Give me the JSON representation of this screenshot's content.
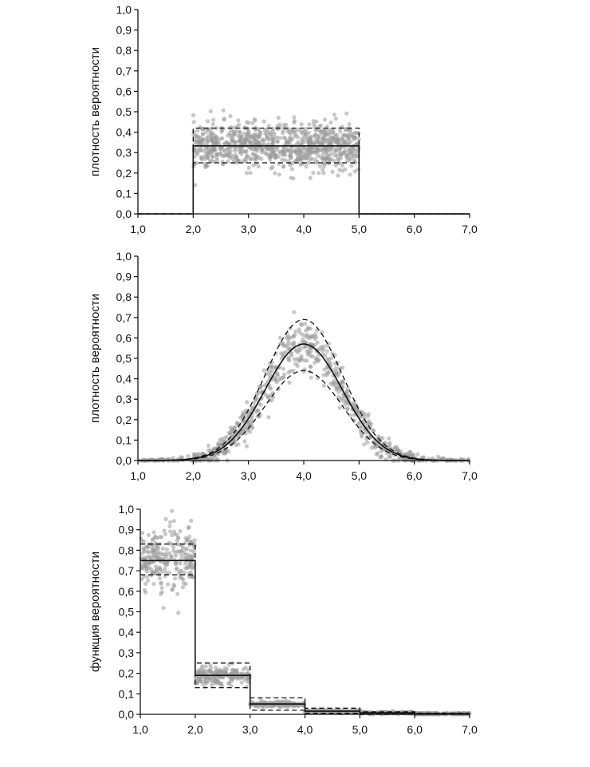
{
  "chart_data": [
    {
      "type": "scatter",
      "ylabel": "плотность вероятности",
      "xlim": [
        1,
        7
      ],
      "ylim": [
        0,
        1
      ],
      "x_ticks": [
        "1,0",
        "2,0",
        "3,0",
        "4,0",
        "5,0",
        "6,0",
        "7,0"
      ],
      "y_ticks": [
        "0,0",
        "0,1",
        "0,2",
        "0,3",
        "0,4",
        "0,5",
        "0,6",
        "0,7",
        "0,8",
        "0,9",
        "1,0"
      ],
      "distribution": "uniform",
      "true_density": {
        "x": [
          1,
          2,
          2,
          5,
          5,
          7
        ],
        "y": [
          0,
          0,
          0.333,
          0.333,
          0,
          0
        ]
      },
      "band_upper": {
        "x": [
          1,
          2,
          2,
          5,
          5,
          7
        ],
        "y": [
          0,
          0,
          0.42,
          0.42,
          0,
          0
        ]
      },
      "band_lower": {
        "x": [
          1,
          2,
          2,
          5,
          5,
          7
        ],
        "y": [
          0,
          0,
          0.25,
          0.25,
          0,
          0
        ]
      },
      "scatter_spread": 0.055
    },
    {
      "type": "scatter",
      "ylabel": "плотность вероятности",
      "xlim": [
        1,
        7
      ],
      "ylim": [
        0,
        1
      ],
      "x_ticks": [
        "1,0",
        "2,0",
        "3,0",
        "4,0",
        "5,0",
        "6,0",
        "7,0"
      ],
      "y_ticks": [
        "0,0",
        "0,1",
        "0,2",
        "0,3",
        "0,4",
        "0,5",
        "0,6",
        "0,7",
        "0,8",
        "0,9",
        "1,0"
      ],
      "distribution": "normal",
      "mean": 4.0,
      "sd": 0.7,
      "peak": 0.57,
      "band_upper_peak": 0.69,
      "band_lower_peak": 0.44,
      "scatter_spread": 0.06
    },
    {
      "type": "scatter",
      "ylabel": "функция  вероятности",
      "xlim": [
        1,
        7
      ],
      "ylim": [
        0,
        1
      ],
      "x_ticks": [
        "1,0",
        "2,0",
        "3,0",
        "4,0",
        "5,0",
        "6,0",
        "7,0"
      ],
      "y_ticks": [
        "0,0",
        "0,1",
        "0,2",
        "0,3",
        "0,4",
        "0,5",
        "0,6",
        "0,7",
        "0,8",
        "0,9",
        "1,0"
      ],
      "distribution": "discrete",
      "steps": [
        {
          "x0": 1,
          "x1": 2,
          "value": 0.75,
          "upper": 0.83,
          "lower": 0.68
        },
        {
          "x0": 2,
          "x1": 3,
          "value": 0.19,
          "upper": 0.25,
          "lower": 0.13
        },
        {
          "x0": 3,
          "x1": 4,
          "value": 0.05,
          "upper": 0.08,
          "lower": 0.02
        },
        {
          "x0": 4,
          "x1": 5,
          "value": 0.015,
          "upper": 0.03,
          "lower": 0.005
        },
        {
          "x0": 5,
          "x1": 6,
          "value": 0.007,
          "upper": 0.012,
          "lower": 0.002
        },
        {
          "x0": 6,
          "x1": 7,
          "value": 0.003,
          "upper": 0.006,
          "lower": 0.001
        }
      ],
      "scatter_spread_ratio": 0.1
    }
  ]
}
